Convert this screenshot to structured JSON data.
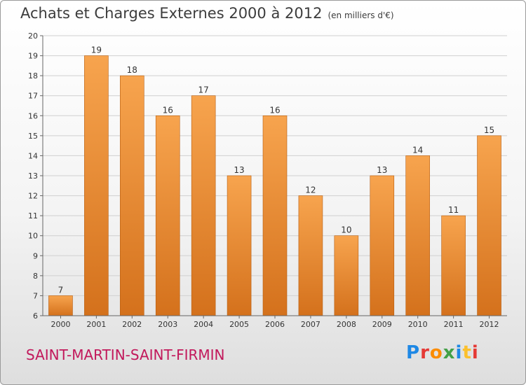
{
  "header": {
    "title": "Achats et Charges Externes 2000 à 2012",
    "subtitle": "(en milliers d'€)"
  },
  "footer": {
    "commune": "SAINT-MARTIN-SAINT-FIRMIN",
    "logo": [
      "P",
      "r",
      "o",
      "x",
      "i",
      "t",
      "i"
    ],
    "logo_colors": [
      "#1e88e5",
      "#e53935",
      "#fb8c00",
      "#43a047",
      "#1e88e5",
      "#fbc02d",
      "#e53935"
    ]
  },
  "colors": {
    "bar_light": "#f7a44e",
    "bar_dark": "#d4711c",
    "bar_stroke": "#b85f12",
    "grid": "#d0d0d0",
    "axis": "#666666",
    "text": "#333333"
  },
  "chart_data": {
    "type": "bar",
    "categories": [
      "2000",
      "2001",
      "2002",
      "2003",
      "2004",
      "2005",
      "2006",
      "2007",
      "2008",
      "2009",
      "2010",
      "2011",
      "2012"
    ],
    "values": [
      7,
      19,
      18,
      16,
      17,
      13,
      16,
      12,
      10,
      13,
      14,
      11,
      15
    ],
    "ylim": [
      6,
      20
    ],
    "yticks": [
      6,
      7,
      8,
      9,
      10,
      11,
      12,
      13,
      14,
      15,
      16,
      17,
      18,
      19,
      20
    ],
    "grid": true,
    "data_labels": true
  }
}
